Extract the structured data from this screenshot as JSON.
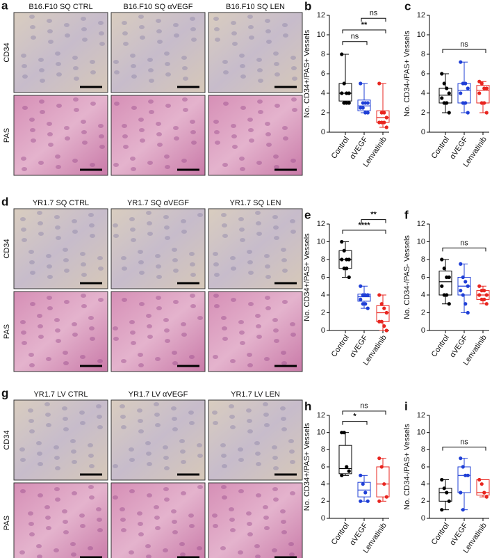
{
  "panels": [
    {
      "letter": "a",
      "titles": [
        "B16.F10 SQ CTRL",
        "B16.F10 SQ αVEGF",
        "B16.F10 SQ LEN"
      ],
      "rows": [
        "CD34",
        "PAS"
      ]
    },
    {
      "letter": "d",
      "titles": [
        "YR1.7 SQ CTRL",
        "YR1.7 SQ αVEGF",
        "YR1.7 SQ LEN"
      ],
      "rows": [
        "CD34",
        "PAS"
      ]
    },
    {
      "letter": "g",
      "titles": [
        "YR1.7 LV CTRL",
        "YR1.7 LV αVEGF",
        "YR1.7 LV LEN"
      ],
      "rows": [
        "CD34",
        "PAS"
      ]
    }
  ],
  "chart_data": [
    {
      "type": "box",
      "panel": "b",
      "y_label": "No. CD34+/PAS+ Vessels",
      "categories": [
        "Control",
        "αVEGF",
        "Lenvatinib"
      ],
      "colors": [
        "#000000",
        "#1f3fd6",
        "#e8251f"
      ],
      "ylim": [
        0,
        12
      ],
      "yticks": [
        0,
        2,
        4,
        6,
        8,
        10,
        12
      ],
      "boxes": [
        {
          "min": 3,
          "q1": 3.2,
          "median": 4,
          "q3": 5,
          "max": 8,
          "points": [
            8,
            5,
            4,
            4,
            4,
            3,
            3,
            3
          ]
        },
        {
          "min": 2,
          "q1": 2.2,
          "median": 2.7,
          "q3": 3.3,
          "max": 5,
          "points": [
            5,
            3,
            3,
            3,
            2.5,
            2.5,
            2,
            2
          ]
        },
        {
          "min": 0.5,
          "q1": 1,
          "median": 1.5,
          "q3": 2.2,
          "max": 5,
          "points": [
            5,
            2,
            2,
            1.5,
            1,
            1,
            1,
            0.5
          ]
        }
      ],
      "annotations": [
        {
          "text": "ns",
          "between": [
            "Control",
            "αVEGF"
          ]
        },
        {
          "text": "**",
          "between": [
            "Control",
            "Lenvatinib"
          ]
        },
        {
          "text": "ns",
          "between": [
            "αVEGF",
            "Lenvatinib"
          ]
        }
      ]
    },
    {
      "type": "box",
      "panel": "c",
      "y_label": "No. CD34-/PAS+ Vessels",
      "categories": [
        "Control",
        "αVEGF",
        "Lenvatinib"
      ],
      "colors": [
        "#000000",
        "#1f3fd6",
        "#e8251f"
      ],
      "ylim": [
        0,
        12
      ],
      "yticks": [
        0,
        2,
        4,
        6,
        8,
        10,
        12
      ],
      "boxes": [
        {
          "min": 2,
          "q1": 3,
          "median": 3.8,
          "q3": 4.5,
          "max": 6,
          "points": [
            6,
            5,
            4.5,
            4,
            3.5,
            3,
            3,
            2
          ]
        },
        {
          "min": 2,
          "q1": 3,
          "median": 4.3,
          "q3": 5,
          "max": 7.2,
          "points": [
            7.2,
            5,
            5,
            4.5,
            4,
            3,
            3,
            2
          ]
        },
        {
          "min": 2,
          "q1": 3,
          "median": 4.3,
          "q3": 4.8,
          "max": 5.2,
          "points": [
            5.2,
            5,
            4.5,
            4.5,
            4,
            3,
            3,
            2
          ]
        }
      ],
      "annotations": [
        {
          "text": "ns",
          "between": [
            "Control",
            "Lenvatinib"
          ]
        }
      ]
    },
    {
      "type": "box",
      "panel": "e",
      "y_label": "No. CD34+/PAS+ Vessels",
      "categories": [
        "Control",
        "αVEGF",
        "Lenvatinib"
      ],
      "colors": [
        "#000000",
        "#1f3fd6",
        "#e8251f"
      ],
      "ylim": [
        0,
        12
      ],
      "yticks": [
        0,
        2,
        4,
        6,
        8,
        10,
        12
      ],
      "boxes": [
        {
          "min": 6,
          "q1": 7,
          "median": 8,
          "q3": 9,
          "max": 10,
          "points": [
            10,
            9,
            8,
            8,
            8,
            7,
            7,
            6
          ]
        },
        {
          "min": 2.5,
          "q1": 3.3,
          "median": 3.8,
          "q3": 4.1,
          "max": 5,
          "points": [
            5,
            4,
            4,
            4,
            3.5,
            3,
            3,
            2.5
          ]
        },
        {
          "min": 0,
          "q1": 1,
          "median": 2,
          "q3": 2.8,
          "max": 4,
          "points": [
            4,
            3,
            2.5,
            2,
            1,
            1,
            0.5,
            0
          ]
        }
      ],
      "annotations": [
        {
          "text": "****",
          "between": [
            "Control",
            "Lenvatinib"
          ]
        },
        {
          "text": "**",
          "between": [
            "αVEGF",
            "Lenvatinib"
          ]
        }
      ]
    },
    {
      "type": "box",
      "panel": "f",
      "y_label": "No. CD34-/PAS- Vessels",
      "categories": [
        "Control",
        "αVEGF",
        "Lenvatinib"
      ],
      "colors": [
        "#000000",
        "#1f3fd6",
        "#e8251f"
      ],
      "ylim": [
        0,
        12
      ],
      "yticks": [
        0,
        2,
        4,
        6,
        8,
        10,
        12
      ],
      "boxes": [
        {
          "min": 3,
          "q1": 4,
          "median": 5.5,
          "q3": 6.7,
          "max": 8,
          "points": [
            8,
            7,
            6,
            6,
            5,
            4,
            4,
            3
          ]
        },
        {
          "min": 2,
          "q1": 4,
          "median": 5,
          "q3": 6,
          "max": 7.5,
          "points": [
            7.5,
            6,
            5.5,
            5,
            4.5,
            4,
            3,
            2
          ]
        },
        {
          "min": 3,
          "q1": 3.5,
          "median": 4,
          "q3": 4.5,
          "max": 5,
          "points": [
            5,
            4.5,
            4.5,
            4,
            4,
            3.5,
            3.5,
            3
          ]
        }
      ],
      "annotations": [
        {
          "text": "ns",
          "between": [
            "Control",
            "Lenvatinib"
          ]
        }
      ]
    },
    {
      "type": "box",
      "panel": "h",
      "y_label": "No. CD34+/PAS+ Vessels",
      "categories": [
        "Control",
        "αVEGF",
        "Lenvatinib"
      ],
      "colors": [
        "#000000",
        "#1f3fd6",
        "#e8251f"
      ],
      "ylim": [
        0,
        12
      ],
      "yticks": [
        0,
        2,
        4,
        6,
        8,
        10,
        12
      ],
      "boxes": [
        {
          "min": 5,
          "q1": 5.2,
          "median": 5.8,
          "q3": 8.5,
          "max": 10,
          "points": [
            10,
            10,
            6,
            5.5,
            5
          ]
        },
        {
          "min": 2,
          "q1": 2.5,
          "median": 3.3,
          "q3": 4.2,
          "max": 5,
          "points": [
            5,
            4,
            3,
            2,
            2
          ]
        },
        {
          "min": 2,
          "q1": 2.5,
          "median": 4,
          "q3": 6,
          "max": 7,
          "points": [
            7,
            6,
            4,
            2.5,
            2
          ]
        }
      ],
      "annotations": [
        {
          "text": "*",
          "between": [
            "Control",
            "αVEGF"
          ]
        },
        {
          "text": "ns",
          "between": [
            "Control",
            "Lenvatinib"
          ]
        }
      ]
    },
    {
      "type": "box",
      "panel": "i",
      "y_label": "No. CD34-/PAS+ Vessels",
      "categories": [
        "Control",
        "αVEGF",
        "Lenvatinib"
      ],
      "colors": [
        "#000000",
        "#1f3fd6",
        "#e8251f"
      ],
      "ylim": [
        0,
        12
      ],
      "yticks": [
        0,
        2,
        4,
        6,
        8,
        10,
        12
      ],
      "boxes": [
        {
          "min": 1,
          "q1": 2,
          "median": 3,
          "q3": 3.5,
          "max": 4.5,
          "points": [
            4.5,
            3.5,
            3,
            2,
            1
          ]
        },
        {
          "min": 1,
          "q1": 3,
          "median": 5,
          "q3": 6,
          "max": 7,
          "points": [
            7,
            6,
            5,
            5,
            3,
            1
          ]
        },
        {
          "min": 2.5,
          "q1": 2.7,
          "median": 3,
          "q3": 4.5,
          "max": 4.5,
          "points": [
            4.5,
            4,
            3,
            2.5
          ]
        }
      ],
      "annotations": [
        {
          "text": "ns",
          "between": [
            "Control",
            "Lenvatinib"
          ]
        }
      ]
    }
  ]
}
